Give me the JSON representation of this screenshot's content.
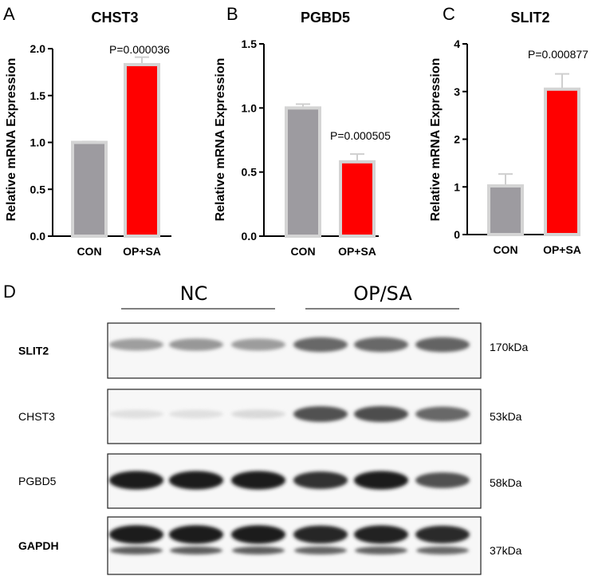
{
  "chart_data": [
    {
      "type": "bar",
      "panel": "A",
      "title": "CHST3",
      "ylabel": "Relative mRNA Expression",
      "categories": [
        "CON",
        "OP+SA"
      ],
      "values": [
        1.0,
        1.83
      ],
      "errors": [
        0.01,
        0.08
      ],
      "ylim": [
        0,
        2.0
      ],
      "yticks": [
        "0.0",
        "0.5",
        "1.0",
        "1.5",
        "2.0"
      ],
      "annotation": "P=0.000036",
      "colors": [
        "#9d9ba0",
        "#ff0000"
      ]
    },
    {
      "type": "bar",
      "panel": "B",
      "title": "PGBD5",
      "ylabel": "Relative mRNA Expression",
      "categories": [
        "CON",
        "OP+SA"
      ],
      "values": [
        1.0,
        0.58
      ],
      "errors": [
        0.03,
        0.06
      ],
      "ylim": [
        0,
        1.5
      ],
      "yticks": [
        "0.0",
        "0.5",
        "1.0",
        "1.5"
      ],
      "annotation": "P=0.000505",
      "colors": [
        "#9d9ba0",
        "#ff0000"
      ]
    },
    {
      "type": "bar",
      "panel": "C",
      "title": "SLIT2",
      "ylabel": "Relative mRNA Expression",
      "categories": [
        "CON",
        "OP+SA"
      ],
      "values": [
        1.02,
        3.05
      ],
      "errors": [
        0.25,
        0.32
      ],
      "ylim": [
        0,
        4
      ],
      "yticks": [
        "0",
        "1",
        "2",
        "3",
        "4"
      ],
      "annotation": "P=0.000877",
      "colors": [
        "#9d9ba0",
        "#ff0000"
      ]
    }
  ],
  "western_blot": {
    "panel": "D",
    "groups": [
      "NC",
      "OP/SA"
    ],
    "lanes_per_group": 3,
    "rows": [
      {
        "protein": "SLIT2",
        "size": "170kDa",
        "bold": true,
        "intensities": [
          0.35,
          0.38,
          0.36,
          0.6,
          0.6,
          0.62
        ]
      },
      {
        "protein": "CHST3",
        "size": "53kDa",
        "bold": false,
        "intensities": [
          0.05,
          0.05,
          0.08,
          0.7,
          0.72,
          0.6
        ]
      },
      {
        "protein": "PGBD5",
        "size": "58kDa",
        "bold": false,
        "intensities": [
          0.95,
          0.95,
          0.95,
          0.85,
          0.95,
          0.7
        ]
      },
      {
        "protein": "GAPDH",
        "size": "37kDa",
        "bold": true,
        "intensities": [
          0.95,
          0.95,
          0.95,
          0.9,
          0.92,
          0.88
        ]
      }
    ]
  }
}
